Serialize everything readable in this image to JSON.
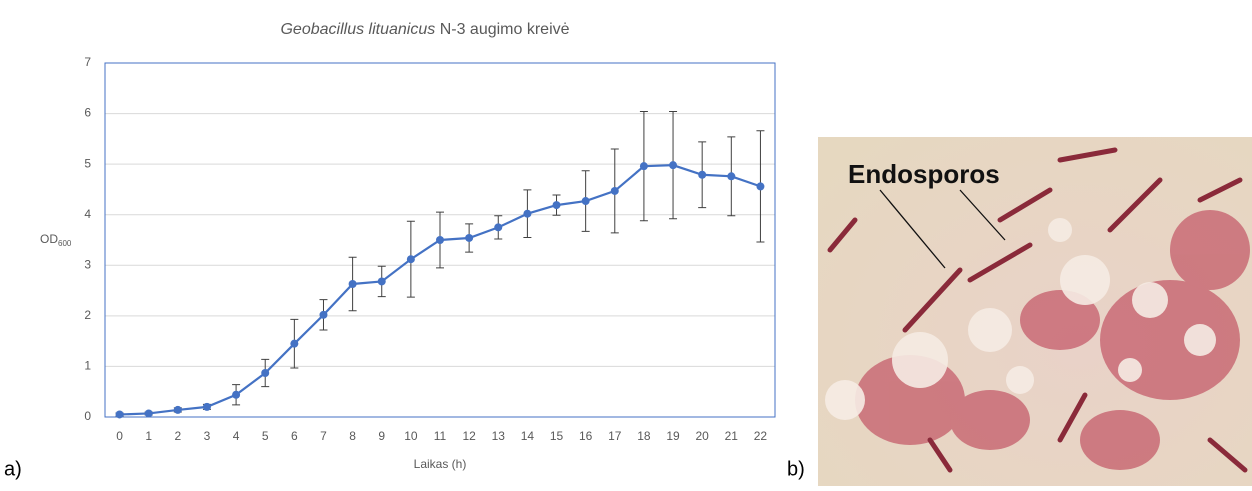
{
  "chart_data": {
    "type": "line",
    "title_italic": "Geobacillus lituanicus",
    "title": "N-3 augimo kreivė",
    "ylabel": "OD",
    "ylabel_sub": "600",
    "xlabel": "Laikas (h)",
    "categories": [
      "0",
      "1",
      "2",
      "3",
      "4",
      "5",
      "6",
      "7",
      "8",
      "9",
      "10",
      "11",
      "12",
      "13",
      "14",
      "15",
      "16",
      "17",
      "18",
      "19",
      "20",
      "21",
      "22"
    ],
    "values": [
      0.05,
      0.07,
      0.14,
      0.2,
      0.44,
      0.87,
      1.45,
      2.02,
      2.63,
      2.68,
      3.12,
      3.5,
      3.54,
      3.75,
      4.02,
      4.19,
      4.27,
      4.47,
      4.96,
      4.98,
      4.79,
      4.76,
      4.56
    ],
    "errors": [
      0.03,
      0.03,
      0.04,
      0.05,
      0.2,
      0.27,
      0.48,
      0.3,
      0.53,
      0.3,
      0.75,
      0.55,
      0.28,
      0.23,
      0.47,
      0.2,
      0.6,
      0.83,
      1.08,
      1.06,
      0.65,
      0.78,
      1.1
    ],
    "color": "#4472c4",
    "ylim": [
      0,
      7
    ],
    "yticks": [
      0,
      1,
      2,
      3,
      4,
      5,
      6,
      7
    ],
    "grid": true
  },
  "panel_labels": [
    "a)",
    "b)"
  ],
  "image": {
    "label": "Endosporos"
  }
}
